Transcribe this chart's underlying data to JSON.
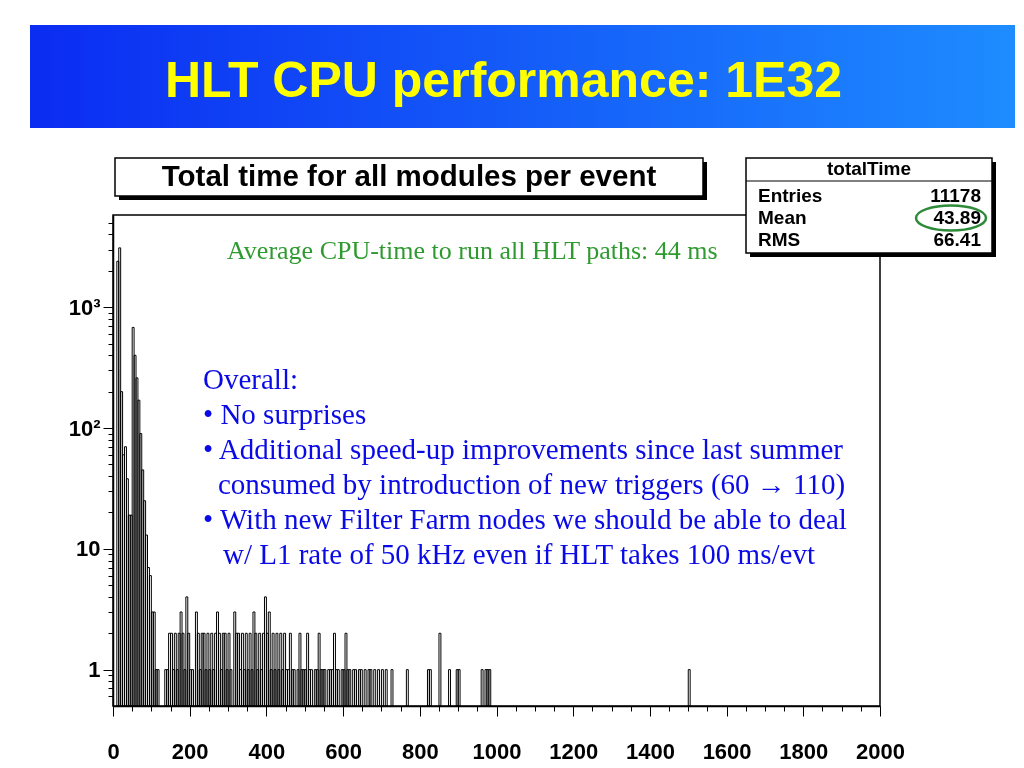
{
  "chart_data": {
    "type": "histogram",
    "title": "HLT CPU performance: 1E32",
    "subtitle": "Total time for all modules per event",
    "annotations": [
      "Average CPU-time to run all HLT paths: 44 ms",
      "Overall:",
      "• No surprises",
      "• Additional speed-up improvements since last summer",
      "consumed by introduction of new triggers (60 → 110)",
      "• With new Filter Farm nodes we should be able to deal",
      "w/ L1 rate of 50 kHz even if HLT takes 100 ms/evt",
      "totalTime",
      "Entries",
      "11178",
      "Mean",
      "43.89",
      "RMS",
      "66.41"
    ],
    "bins": [
      10,
      15,
      20,
      25,
      30,
      35,
      40,
      45,
      50,
      55,
      60,
      65,
      70,
      75,
      80,
      85,
      90,
      95,
      100,
      105,
      110,
      115,
      120,
      135,
      140,
      145,
      150,
      155,
      160,
      165,
      170,
      175,
      180,
      185,
      190,
      195,
      200,
      205,
      210,
      215,
      220,
      225,
      230,
      235,
      240,
      245,
      250,
      255,
      260,
      265,
      270,
      275,
      280,
      285,
      290,
      295,
      300,
      305,
      310,
      315,
      320,
      325,
      330,
      335,
      340,
      345,
      350,
      355,
      360,
      365,
      370,
      375,
      380,
      385,
      390,
      395,
      400,
      405,
      410,
      415,
      420,
      425,
      430,
      435,
      440,
      445,
      450,
      455,
      460,
      465,
      470,
      475,
      480,
      485,
      490,
      495,
      500,
      505,
      510,
      515,
      520,
      525,
      530,
      535,
      540,
      545,
      550,
      555,
      560,
      565,
      570,
      575,
      580,
      585,
      590,
      595,
      600,
      605,
      610,
      615,
      620,
      625,
      630,
      635,
      640,
      645,
      650,
      655,
      660,
      665,
      670,
      675,
      680,
      685,
      690,
      695,
      700,
      705,
      710,
      715,
      725,
      730,
      765,
      770,
      820,
      825,
      830,
      850,
      855,
      875,
      880,
      895,
      900,
      905,
      960,
      965,
      970,
      975,
      980,
      985,
      1500,
      1505
    ],
    "values": [
      2400,
      3100,
      200,
      60,
      70,
      38,
      19,
      19,
      680,
      400,
      260,
      170,
      90,
      45,
      25,
      13,
      7,
      6,
      3,
      3,
      1,
      1,
      null,
      1,
      1,
      2,
      2,
      1,
      2,
      1,
      2,
      3,
      2,
      1,
      4,
      2,
      1,
      1,
      null,
      3,
      2,
      1,
      2,
      2,
      1,
      2,
      1,
      2,
      1,
      2,
      3,
      2,
      1,
      2,
      2,
      1,
      2,
      1,
      null,
      3,
      2,
      2,
      1,
      2,
      1,
      2,
      1,
      2,
      1,
      3,
      2,
      1,
      2,
      1,
      2,
      4,
      2,
      3,
      1,
      2,
      1,
      2,
      1,
      2,
      1,
      2,
      1,
      1,
      2,
      1,
      1,
      null,
      1,
      2,
      1,
      1,
      1,
      2,
      1,
      1,
      null,
      1,
      1,
      2,
      1,
      1,
      1,
      null,
      1,
      1,
      1,
      2,
      1,
      1,
      null,
      1,
      1,
      2,
      1,
      1,
      null,
      1,
      1,
      null,
      1,
      1,
      null,
      1,
      null,
      1,
      1,
      null,
      1,
      null,
      1,
      null,
      1,
      null,
      1,
      null,
      1,
      null,
      1,
      null,
      1,
      1,
      null,
      2,
      null,
      1,
      null,
      1,
      1,
      null,
      1,
      null,
      1,
      1,
      1,
      null,
      1
    ],
    "color": "#000000",
    "log": true,
    "xlim": [
      0,
      2000
    ],
    "ylim": [
      0.5,
      5800
    ],
    "xticks": [
      0,
      {
        "value": 50,
        "label": null
      },
      {
        "value": 100,
        "label": null
      },
      {
        "value": 150,
        "label": null
      },
      200,
      {
        "value": 250,
        "label": null
      },
      {
        "value": 300,
        "label": null
      },
      {
        "value": 350,
        "label": null
      },
      400,
      {
        "value": 450,
        "label": null
      },
      {
        "value": 500,
        "label": null
      },
      {
        "value": 550,
        "label": null
      },
      600,
      {
        "value": 650,
        "label": null
      },
      {
        "value": 700,
        "label": null
      },
      {
        "value": 750,
        "label": null
      },
      800,
      {
        "value": 850,
        "label": null
      },
      {
        "value": 900,
        "label": null
      },
      {
        "value": 950,
        "label": null
      },
      1000,
      {
        "value": 1050,
        "label": null
      },
      {
        "value": 1100,
        "label": null
      },
      {
        "value": 1150,
        "label": null
      },
      1200,
      {
        "value": 1250,
        "label": null
      },
      {
        "value": 1300,
        "label": null
      },
      {
        "value": 1350,
        "label": null
      },
      1400,
      {
        "value": 1450,
        "label": null
      },
      {
        "value": 1500,
        "label": null
      },
      {
        "value": 1550,
        "label": null
      },
      1600,
      {
        "value": 1650,
        "label": null
      },
      {
        "value": 1700,
        "label": null
      },
      {
        "value": 1750,
        "label": null
      },
      1800,
      {
        "value": 1850,
        "label": null
      },
      {
        "value": 1900,
        "label": null
      },
      {
        "value": 1950,
        "label": null
      },
      2000
    ],
    "yticks": [
      {
        "value": 0.6,
        "label": null
      },
      {
        "value": 0.7,
        "label": null
      },
      {
        "value": 0.8,
        "label": null
      },
      {
        "value": 0.9,
        "label": null
      },
      1,
      {
        "value": 2,
        "label": null
      },
      {
        "value": 3,
        "label": null
      },
      {
        "value": 4,
        "label": null
      },
      {
        "value": 5,
        "label": null
      },
      {
        "value": 6,
        "label": null
      },
      {
        "value": 7,
        "label": null
      },
      {
        "value": 8,
        "label": null
      },
      {
        "value": 9,
        "label": null
      },
      10,
      {
        "value": 20,
        "label": null
      },
      {
        "value": 30,
        "label": null
      },
      {
        "value": 40,
        "label": null
      },
      {
        "value": 50,
        "label": null
      },
      {
        "value": 60,
        "label": null
      },
      {
        "value": 70,
        "label": null
      },
      {
        "value": 80,
        "label": null
      },
      {
        "value": 90,
        "label": null
      },
      {
        "value": 100,
        "label": "10²"
      },
      {
        "value": 200,
        "label": null
      },
      {
        "value": 300,
        "label": null
      },
      {
        "value": 400,
        "label": null
      },
      {
        "value": 500,
        "label": null
      },
      {
        "value": 600,
        "label": null
      },
      {
        "value": 700,
        "label": null
      },
      {
        "value": 800,
        "label": null
      },
      {
        "value": 900,
        "label": null
      },
      {
        "value": 1000,
        "label": "10³"
      },
      {
        "value": 2000,
        "label": null
      },
      {
        "value": 3000,
        "label": null
      },
      {
        "value": 4000,
        "label": null
      },
      {
        "value": 5000,
        "label": null
      }
    ]
  }
}
